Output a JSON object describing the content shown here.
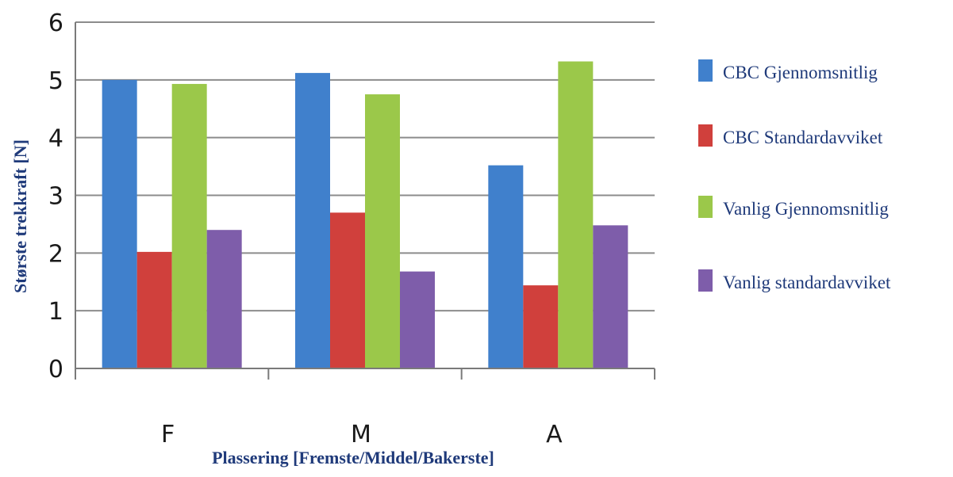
{
  "chart_data": {
    "type": "bar",
    "title": "",
    "xlabel": "Plassering [Fremste/Middel/Bakerste]",
    "ylabel": "Største trekkraft [N]",
    "categories": [
      "F",
      "M",
      "A"
    ],
    "yticks": [
      "0",
      "1",
      "2",
      "3",
      "4",
      "5",
      "6"
    ],
    "ylim": [
      0,
      6
    ],
    "grid": true,
    "legend_position": "right",
    "series": [
      {
        "name": "CBC Gjennomsnitlig",
        "color": "#4080cc",
        "values": [
          5.0,
          5.12,
          3.52
        ]
      },
      {
        "name": "CBC Standardavviket",
        "color": "#d0403c",
        "values": [
          2.02,
          2.7,
          1.44
        ]
      },
      {
        "name": "Vanlig Gjennomsnitlig",
        "color": "#9bc84a",
        "values": [
          4.93,
          4.75,
          5.32
        ]
      },
      {
        "name": "Vanlig standardavviket",
        "color": "#7e5daa",
        "values": [
          2.4,
          1.68,
          2.48
        ]
      }
    ]
  }
}
